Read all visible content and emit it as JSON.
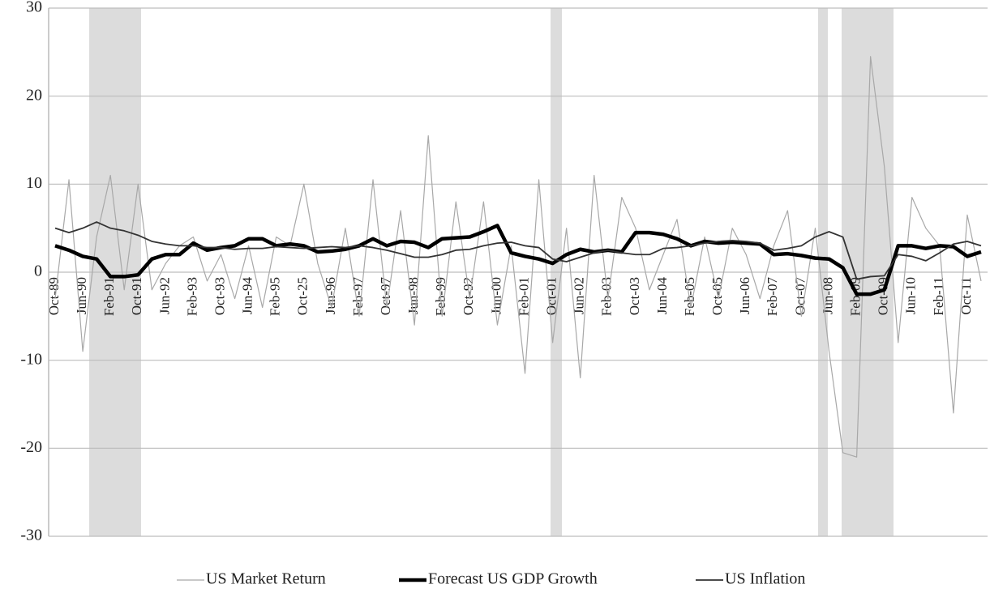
{
  "chart_data": {
    "type": "line",
    "categories": [
      "Oct-89",
      null,
      "Jun-90",
      null,
      "Feb-91",
      null,
      "Oct-91",
      null,
      "Jun-92",
      null,
      "Feb-93",
      null,
      "Oct-93",
      null,
      "Jun-94",
      null,
      "Feb-95",
      null,
      "Oct-25",
      null,
      "Jun-96",
      null,
      "Feb-97",
      null,
      "Oct-97",
      null,
      "Jun-98",
      null,
      "Feb-99",
      null,
      "Oct-92",
      null,
      "Jun-00",
      null,
      "Feb-01",
      null,
      "Oct-01",
      null,
      "Jun-02",
      null,
      "Feb-03",
      null,
      "Oct-03",
      null,
      "Jun-04",
      null,
      "Feb-05",
      null,
      "Oct-05",
      null,
      "Jun-06",
      null,
      "Feb-07",
      null,
      "Oct-07",
      null,
      "Jun-08",
      null,
      "Feb-09",
      null,
      "Oct-09",
      null,
      "Jun-10",
      null,
      "Feb-11",
      null,
      "Oct-11",
      null
    ],
    "series": [
      {
        "name": "US Market Return",
        "color": "#a8a8a8",
        "width": 1.2,
        "values": [
          -3,
          10.5,
          -9,
          4,
          11,
          -2,
          10,
          -2,
          1,
          3,
          4,
          -1,
          2,
          -3,
          3,
          -4,
          4,
          3,
          10,
          1,
          -4,
          5,
          -5,
          10.5,
          -4,
          7,
          -6,
          15.5,
          -5,
          8,
          -3,
          8,
          -6,
          3,
          -11.5,
          10.5,
          -8,
          5,
          -12,
          11,
          -3,
          8.5,
          5,
          -2,
          2,
          6,
          -4,
          4,
          -3,
          5,
          2,
          -3,
          3,
          7,
          -5,
          5,
          -9,
          -20.5,
          -21,
          24.5,
          12,
          -8,
          8.5,
          5,
          3,
          -16,
          6.5,
          -1
        ]
      },
      {
        "name": "Forecast US GDP Growth",
        "color": "#000000",
        "width": 4.5,
        "values": [
          3,
          2.5,
          1.8,
          1.5,
          -0.5,
          -0.5,
          -0.3,
          1.5,
          2.0,
          2.0,
          3.3,
          2.5,
          2.8,
          3.0,
          3.8,
          3.8,
          3.0,
          3.2,
          3.0,
          2.3,
          2.4,
          2.6,
          3.0,
          3.8,
          3.0,
          3.5,
          3.4,
          2.8,
          3.8,
          3.9,
          4.0,
          4.6,
          5.3,
          2.2,
          1.8,
          1.5,
          1.0,
          2.0,
          2.6,
          2.3,
          2.5,
          2.3,
          4.5,
          4.5,
          4.3,
          3.8,
          3.0,
          3.5,
          3.3,
          3.4,
          3.3,
          3.2,
          2.0,
          2.1,
          1.9,
          1.6,
          1.5,
          0.5,
          -2.5,
          -2.5,
          -2.0,
          3.0,
          3.0,
          2.7,
          3.0,
          2.9,
          1.8,
          2.3
        ]
      },
      {
        "name": "US Inflation",
        "color": "#333333",
        "width": 1.8,
        "values": [
          5,
          4.5,
          5,
          5.7,
          5,
          4.7,
          4.2,
          3.5,
          3.2,
          3.0,
          3.0,
          2.8,
          2.8,
          2.6,
          2.7,
          2.7,
          2.9,
          2.8,
          2.7,
          2.8,
          2.9,
          2.8,
          3.0,
          2.8,
          2.5,
          2.1,
          1.7,
          1.7,
          2.0,
          2.5,
          2.6,
          3.0,
          3.3,
          3.4,
          3.0,
          2.8,
          1.5,
          1.2,
          1.7,
          2.2,
          2.5,
          2.2,
          2.0,
          2.0,
          2.7,
          2.8,
          3.0,
          3.3,
          3.5,
          3.6,
          3.5,
          3.3,
          2.5,
          2.7,
          3.0,
          4.0,
          4.6,
          4.0,
          -0.8,
          -0.5,
          -0.4,
          2.0,
          1.8,
          1.3,
          2.2,
          3.2,
          3.5,
          3.0
        ]
      }
    ],
    "ylim": [
      -30,
      30
    ],
    "yticks": [
      -30,
      -20,
      -10,
      0,
      10,
      20,
      30
    ],
    "grid": true
  }
}
